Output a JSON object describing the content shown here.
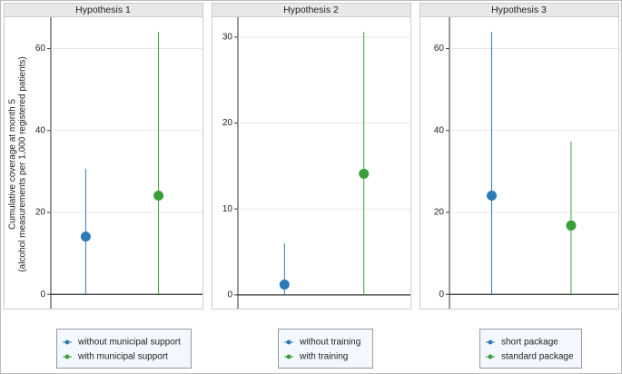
{
  "chart_data": [
    {
      "type": "errorbar",
      "title": "Hypothesis 1",
      "ylabel": [
        "Cumulative coverage at month 5",
        "(alcohol measurements per 1,000 registered patients)"
      ],
      "ylim": [
        -3.5,
        67
      ],
      "yticks": [
        0,
        20,
        40,
        60
      ],
      "grid": true,
      "series": [
        {
          "name": "without municipal support",
          "color": "#2e7ab6",
          "values": [
            14.1
          ],
          "lower": [
            0
          ],
          "upper": [
            30.7
          ]
        },
        {
          "name": "with municipal support",
          "color": "#3a9e3a",
          "values": [
            24.1
          ],
          "lower": [
            0
          ],
          "upper": [
            64.1
          ]
        }
      ]
    },
    {
      "type": "errorbar",
      "title": "Hypothesis 2",
      "ylim": [
        -1.6,
        32
      ],
      "yticks": [
        0,
        10,
        20,
        30
      ],
      "grid": true,
      "series": [
        {
          "name": "without training",
          "color": "#2e7ab6",
          "values": [
            1.2
          ],
          "lower": [
            0
          ],
          "upper": [
            6
          ]
        },
        {
          "name": "with training",
          "color": "#3a9e3a",
          "values": [
            14.1
          ],
          "lower": [
            0
          ],
          "upper": [
            30.6
          ]
        }
      ]
    },
    {
      "type": "errorbar",
      "title": "Hypothesis 3",
      "ylim": [
        -3.5,
        67
      ],
      "yticks": [
        0,
        20,
        40,
        60
      ],
      "grid": true,
      "series": [
        {
          "name": "short package",
          "color": "#2e7ab6",
          "values": [
            24.1
          ],
          "lower": [
            0
          ],
          "upper": [
            64.1
          ]
        },
        {
          "name": "standard package",
          "color": "#3a9e3a",
          "values": [
            16.8
          ],
          "lower": [
            0
          ],
          "upper": [
            37.3
          ]
        }
      ]
    }
  ]
}
